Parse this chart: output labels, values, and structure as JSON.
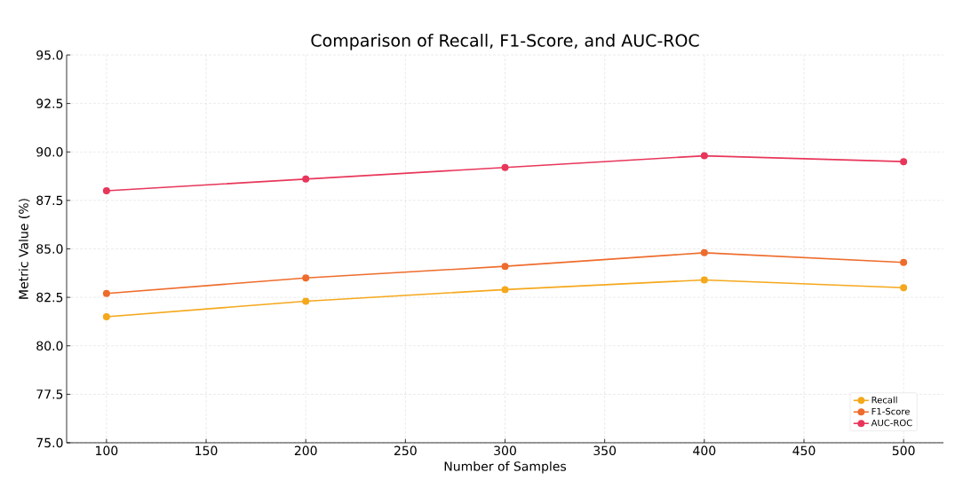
{
  "chart_data": {
    "type": "line",
    "title": "Comparison of Recall, F1-Score, and AUC-ROC",
    "xlabel": "Number of Samples",
    "ylabel": "Metric Value (%)",
    "x": [
      100,
      200,
      300,
      400,
      500
    ],
    "series": [
      {
        "name": "Recall",
        "color": "#f5a81c",
        "values": [
          81.5,
          82.3,
          82.9,
          83.4,
          83.0
        ]
      },
      {
        "name": "F1-Score",
        "color": "#ee6c2c",
        "values": [
          82.7,
          83.5,
          84.1,
          84.8,
          84.3
        ]
      },
      {
        "name": "AUC-ROC",
        "color": "#e8365a",
        "values": [
          88.0,
          88.6,
          89.2,
          89.8,
          89.5
        ]
      }
    ],
    "xlim": [
      80,
      520
    ],
    "ylim": [
      75,
      95
    ],
    "xticks": [
      100,
      150,
      200,
      250,
      300,
      350,
      400,
      450,
      500
    ],
    "yticks": [
      {
        "value": 75,
        "label": "75.0"
      },
      {
        "value": 77.5,
        "label": "77.5"
      },
      {
        "value": 80,
        "label": "80.0"
      },
      {
        "value": 82.5,
        "label": "82.5"
      },
      {
        "value": 85,
        "label": "85.0"
      },
      {
        "value": 87.5,
        "label": "87.5"
      },
      {
        "value": 90,
        "label": "90.0"
      },
      {
        "value": 92.5,
        "label": "92.5"
      },
      {
        "value": 95,
        "label": "95.0"
      }
    ],
    "grid": true,
    "legend": "bottom right",
    "marker": "circle",
    "line_style": "solid"
  }
}
